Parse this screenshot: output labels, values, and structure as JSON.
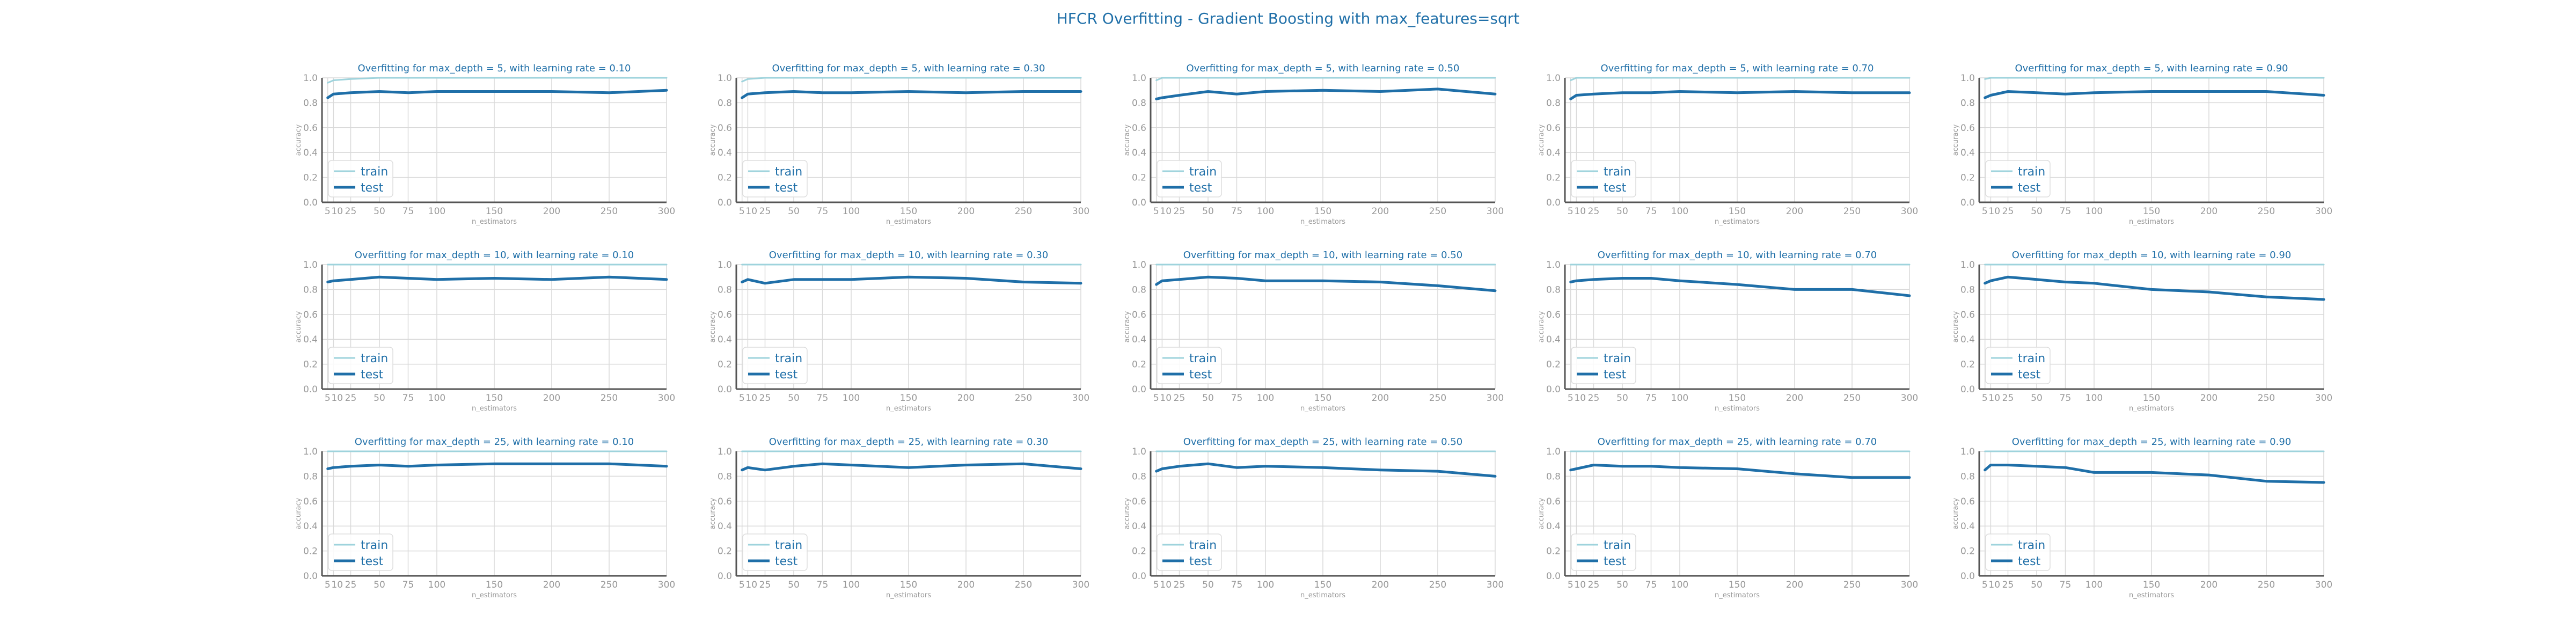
{
  "figure": {
    "title": "HFCR Overfitting - Gradient Boosting with max_features=sqrt",
    "colors": {
      "train": "#9ed3dc",
      "test": "#1f6fa8",
      "grid": "#d9d9d9",
      "text": "#1f6fa8",
      "axis_text": "#999999"
    }
  },
  "chart_data": [
    {
      "type": "line",
      "title": "Overfitting for max_depth = 5, with learning rate = 0.10",
      "xlabel": "n_estimators",
      "ylabel": "accuracy",
      "x": [
        5,
        10,
        25,
        50,
        75,
        100,
        150,
        200,
        250,
        300
      ],
      "xticks": [
        5,
        10,
        25,
        50,
        75,
        100,
        150,
        200,
        250,
        300
      ],
      "xlim": [
        0,
        300
      ],
      "yticks": [
        "0.0",
        "0.2",
        "0.4",
        "0.6",
        "0.8",
        "1.0"
      ],
      "ylim": [
        0,
        1
      ],
      "grid": true,
      "legend": "lower-left",
      "series": [
        {
          "name": "train",
          "values": [
            0.96,
            0.98,
            0.99,
            1.0,
            1.0,
            1.0,
            1.0,
            1.0,
            1.0,
            1.0
          ]
        },
        {
          "name": "test",
          "values": [
            0.84,
            0.87,
            0.88,
            0.89,
            0.88,
            0.89,
            0.89,
            0.89,
            0.88,
            0.9
          ]
        }
      ]
    },
    {
      "type": "line",
      "title": "Overfitting for max_depth = 5, with learning rate = 0.30",
      "xlabel": "n_estimators",
      "ylabel": "accuracy",
      "x": [
        5,
        10,
        25,
        50,
        75,
        100,
        150,
        200,
        250,
        300
      ],
      "xticks": [
        5,
        10,
        25,
        50,
        75,
        100,
        150,
        200,
        250,
        300
      ],
      "xlim": [
        0,
        300
      ],
      "yticks": [
        "0.0",
        "0.2",
        "0.4",
        "0.6",
        "0.8",
        "1.0"
      ],
      "ylim": [
        0,
        1
      ],
      "grid": true,
      "legend": "lower-left",
      "series": [
        {
          "name": "train",
          "values": [
            0.97,
            0.99,
            1.0,
            1.0,
            1.0,
            1.0,
            1.0,
            1.0,
            1.0,
            1.0
          ]
        },
        {
          "name": "test",
          "values": [
            0.84,
            0.87,
            0.88,
            0.89,
            0.88,
            0.88,
            0.89,
            0.88,
            0.89,
            0.89
          ]
        }
      ]
    },
    {
      "type": "line",
      "title": "Overfitting for max_depth = 5, with learning rate = 0.50",
      "xlabel": "n_estimators",
      "ylabel": "accuracy",
      "x": [
        5,
        10,
        25,
        50,
        75,
        100,
        150,
        200,
        250,
        300
      ],
      "xticks": [
        5,
        10,
        25,
        50,
        75,
        100,
        150,
        200,
        250,
        300
      ],
      "xlim": [
        0,
        300
      ],
      "yticks": [
        "0.0",
        "0.2",
        "0.4",
        "0.6",
        "0.8",
        "1.0"
      ],
      "ylim": [
        0,
        1
      ],
      "grid": true,
      "legend": "lower-left",
      "series": [
        {
          "name": "train",
          "values": [
            0.98,
            1.0,
            1.0,
            1.0,
            1.0,
            1.0,
            1.0,
            1.0,
            1.0,
            1.0
          ]
        },
        {
          "name": "test",
          "values": [
            0.83,
            0.84,
            0.86,
            0.89,
            0.87,
            0.89,
            0.9,
            0.89,
            0.91,
            0.87
          ]
        }
      ]
    },
    {
      "type": "line",
      "title": "Overfitting for max_depth = 5, with learning rate = 0.70",
      "xlabel": "n_estimators",
      "ylabel": "accuracy",
      "x": [
        5,
        10,
        25,
        50,
        75,
        100,
        150,
        200,
        250,
        300
      ],
      "xticks": [
        5,
        10,
        25,
        50,
        75,
        100,
        150,
        200,
        250,
        300
      ],
      "xlim": [
        0,
        300
      ],
      "yticks": [
        "0.0",
        "0.2",
        "0.4",
        "0.6",
        "0.8",
        "1.0"
      ],
      "ylim": [
        0,
        1
      ],
      "grid": true,
      "legend": "lower-left",
      "series": [
        {
          "name": "train",
          "values": [
            0.98,
            1.0,
            1.0,
            1.0,
            1.0,
            1.0,
            1.0,
            1.0,
            1.0,
            1.0
          ]
        },
        {
          "name": "test",
          "values": [
            0.83,
            0.86,
            0.87,
            0.88,
            0.88,
            0.89,
            0.88,
            0.89,
            0.88,
            0.88
          ]
        }
      ]
    },
    {
      "type": "line",
      "title": "Overfitting for max_depth = 5, with learning rate = 0.90",
      "xlabel": "n_estimators",
      "ylabel": "accuracy",
      "x": [
        5,
        10,
        25,
        50,
        75,
        100,
        150,
        200,
        250,
        300
      ],
      "xticks": [
        5,
        10,
        25,
        50,
        75,
        100,
        150,
        200,
        250,
        300
      ],
      "xlim": [
        0,
        300
      ],
      "yticks": [
        "0.0",
        "0.2",
        "0.4",
        "0.6",
        "0.8",
        "1.0"
      ],
      "ylim": [
        0,
        1
      ],
      "grid": true,
      "legend": "lower-left",
      "series": [
        {
          "name": "train",
          "values": [
            0.99,
            1.0,
            1.0,
            1.0,
            1.0,
            1.0,
            1.0,
            1.0,
            1.0,
            1.0
          ]
        },
        {
          "name": "test",
          "values": [
            0.84,
            0.86,
            0.89,
            0.88,
            0.87,
            0.88,
            0.89,
            0.89,
            0.89,
            0.86
          ]
        }
      ]
    },
    {
      "type": "line",
      "title": "Overfitting for max_depth = 10, with learning rate = 0.10",
      "xlabel": "n_estimators",
      "ylabel": "accuracy",
      "x": [
        5,
        10,
        25,
        50,
        75,
        100,
        150,
        200,
        250,
        300
      ],
      "xticks": [
        5,
        10,
        25,
        50,
        75,
        100,
        150,
        200,
        250,
        300
      ],
      "xlim": [
        0,
        300
      ],
      "yticks": [
        "0.0",
        "0.2",
        "0.4",
        "0.6",
        "0.8",
        "1.0"
      ],
      "ylim": [
        0,
        1
      ],
      "grid": true,
      "legend": "lower-left",
      "series": [
        {
          "name": "train",
          "values": [
            1.0,
            1.0,
            1.0,
            1.0,
            1.0,
            1.0,
            1.0,
            1.0,
            1.0,
            1.0
          ]
        },
        {
          "name": "test",
          "values": [
            0.86,
            0.87,
            0.88,
            0.9,
            0.89,
            0.88,
            0.89,
            0.88,
            0.9,
            0.88
          ]
        }
      ]
    },
    {
      "type": "line",
      "title": "Overfitting for max_depth = 10, with learning rate = 0.30",
      "xlabel": "n_estimators",
      "ylabel": "accuracy",
      "x": [
        5,
        10,
        25,
        50,
        75,
        100,
        150,
        200,
        250,
        300
      ],
      "xticks": [
        5,
        10,
        25,
        50,
        75,
        100,
        150,
        200,
        250,
        300
      ],
      "xlim": [
        0,
        300
      ],
      "yticks": [
        "0.0",
        "0.2",
        "0.4",
        "0.6",
        "0.8",
        "1.0"
      ],
      "ylim": [
        0,
        1
      ],
      "grid": true,
      "legend": "lower-left",
      "series": [
        {
          "name": "train",
          "values": [
            1.0,
            1.0,
            1.0,
            1.0,
            1.0,
            1.0,
            1.0,
            1.0,
            1.0,
            1.0
          ]
        },
        {
          "name": "test",
          "values": [
            0.86,
            0.88,
            0.85,
            0.88,
            0.88,
            0.88,
            0.9,
            0.89,
            0.86,
            0.85
          ]
        }
      ]
    },
    {
      "type": "line",
      "title": "Overfitting for max_depth = 10, with learning rate = 0.50",
      "xlabel": "n_estimators",
      "ylabel": "accuracy",
      "x": [
        5,
        10,
        25,
        50,
        75,
        100,
        150,
        200,
        250,
        300
      ],
      "xticks": [
        5,
        10,
        25,
        50,
        75,
        100,
        150,
        200,
        250,
        300
      ],
      "xlim": [
        0,
        300
      ],
      "yticks": [
        "0.0",
        "0.2",
        "0.4",
        "0.6",
        "0.8",
        "1.0"
      ],
      "ylim": [
        0,
        1
      ],
      "grid": true,
      "legend": "lower-left",
      "series": [
        {
          "name": "train",
          "values": [
            1.0,
            1.0,
            1.0,
            1.0,
            1.0,
            1.0,
            1.0,
            1.0,
            1.0,
            1.0
          ]
        },
        {
          "name": "test",
          "values": [
            0.84,
            0.87,
            0.88,
            0.9,
            0.89,
            0.87,
            0.87,
            0.86,
            0.83,
            0.79
          ]
        }
      ]
    },
    {
      "type": "line",
      "title": "Overfitting for max_depth = 10, with learning rate = 0.70",
      "xlabel": "n_estimators",
      "ylabel": "accuracy",
      "x": [
        5,
        10,
        25,
        50,
        75,
        100,
        150,
        200,
        250,
        300
      ],
      "xticks": [
        5,
        10,
        25,
        50,
        75,
        100,
        150,
        200,
        250,
        300
      ],
      "xlim": [
        0,
        300
      ],
      "yticks": [
        "0.0",
        "0.2",
        "0.4",
        "0.6",
        "0.8",
        "1.0"
      ],
      "ylim": [
        0,
        1
      ],
      "grid": true,
      "legend": "lower-left",
      "series": [
        {
          "name": "train",
          "values": [
            1.0,
            1.0,
            1.0,
            1.0,
            1.0,
            1.0,
            1.0,
            1.0,
            1.0,
            1.0
          ]
        },
        {
          "name": "test",
          "values": [
            0.86,
            0.87,
            0.88,
            0.89,
            0.89,
            0.87,
            0.84,
            0.8,
            0.8,
            0.75
          ]
        }
      ]
    },
    {
      "type": "line",
      "title": "Overfitting for max_depth = 10, with learning rate = 0.90",
      "xlabel": "n_estimators",
      "ylabel": "accuracy",
      "x": [
        5,
        10,
        25,
        50,
        75,
        100,
        150,
        200,
        250,
        300
      ],
      "xticks": [
        5,
        10,
        25,
        50,
        75,
        100,
        150,
        200,
        250,
        300
      ],
      "xlim": [
        0,
        300
      ],
      "yticks": [
        "0.0",
        "0.2",
        "0.4",
        "0.6",
        "0.8",
        "1.0"
      ],
      "ylim": [
        0,
        1
      ],
      "grid": true,
      "legend": "lower-left",
      "series": [
        {
          "name": "train",
          "values": [
            1.0,
            1.0,
            1.0,
            1.0,
            1.0,
            1.0,
            1.0,
            1.0,
            1.0,
            1.0
          ]
        },
        {
          "name": "test",
          "values": [
            0.85,
            0.87,
            0.9,
            0.88,
            0.86,
            0.85,
            0.8,
            0.78,
            0.74,
            0.72
          ]
        }
      ]
    },
    {
      "type": "line",
      "title": "Overfitting for max_depth = 25, with learning rate = 0.10",
      "xlabel": "n_estimators",
      "ylabel": "accuracy",
      "x": [
        5,
        10,
        25,
        50,
        75,
        100,
        150,
        200,
        250,
        300
      ],
      "xticks": [
        5,
        10,
        25,
        50,
        75,
        100,
        150,
        200,
        250,
        300
      ],
      "xlim": [
        0,
        300
      ],
      "yticks": [
        "0.0",
        "0.2",
        "0.4",
        "0.6",
        "0.8",
        "1.0"
      ],
      "ylim": [
        0,
        1
      ],
      "grid": true,
      "legend": "lower-left",
      "series": [
        {
          "name": "train",
          "values": [
            1.0,
            1.0,
            1.0,
            1.0,
            1.0,
            1.0,
            1.0,
            1.0,
            1.0,
            1.0
          ]
        },
        {
          "name": "test",
          "values": [
            0.86,
            0.87,
            0.88,
            0.89,
            0.88,
            0.89,
            0.9,
            0.9,
            0.9,
            0.88
          ]
        }
      ]
    },
    {
      "type": "line",
      "title": "Overfitting for max_depth = 25, with learning rate = 0.30",
      "xlabel": "n_estimators",
      "ylabel": "accuracy",
      "x": [
        5,
        10,
        25,
        50,
        75,
        100,
        150,
        200,
        250,
        300
      ],
      "xticks": [
        5,
        10,
        25,
        50,
        75,
        100,
        150,
        200,
        250,
        300
      ],
      "xlim": [
        0,
        300
      ],
      "yticks": [
        "0.0",
        "0.2",
        "0.4",
        "0.6",
        "0.8",
        "1.0"
      ],
      "ylim": [
        0,
        1
      ],
      "grid": true,
      "legend": "lower-left",
      "series": [
        {
          "name": "train",
          "values": [
            1.0,
            1.0,
            1.0,
            1.0,
            1.0,
            1.0,
            1.0,
            1.0,
            1.0,
            1.0
          ]
        },
        {
          "name": "test",
          "values": [
            0.85,
            0.87,
            0.85,
            0.88,
            0.9,
            0.89,
            0.87,
            0.89,
            0.9,
            0.86
          ]
        }
      ]
    },
    {
      "type": "line",
      "title": "Overfitting for max_depth = 25, with learning rate = 0.50",
      "xlabel": "n_estimators",
      "ylabel": "accuracy",
      "x": [
        5,
        10,
        25,
        50,
        75,
        100,
        150,
        200,
        250,
        300
      ],
      "xticks": [
        5,
        10,
        25,
        50,
        75,
        100,
        150,
        200,
        250,
        300
      ],
      "xlim": [
        0,
        300
      ],
      "yticks": [
        "0.0",
        "0.2",
        "0.4",
        "0.6",
        "0.8",
        "1.0"
      ],
      "ylim": [
        0,
        1
      ],
      "grid": true,
      "legend": "lower-left",
      "series": [
        {
          "name": "train",
          "values": [
            1.0,
            1.0,
            1.0,
            1.0,
            1.0,
            1.0,
            1.0,
            1.0,
            1.0,
            1.0
          ]
        },
        {
          "name": "test",
          "values": [
            0.84,
            0.86,
            0.88,
            0.9,
            0.87,
            0.88,
            0.87,
            0.85,
            0.84,
            0.8
          ]
        }
      ]
    },
    {
      "type": "line",
      "title": "Overfitting for max_depth = 25, with learning rate = 0.70",
      "xlabel": "n_estimators",
      "ylabel": "accuracy",
      "x": [
        5,
        10,
        25,
        50,
        75,
        100,
        150,
        200,
        250,
        300
      ],
      "xticks": [
        5,
        10,
        25,
        50,
        75,
        100,
        150,
        200,
        250,
        300
      ],
      "xlim": [
        0,
        300
      ],
      "yticks": [
        "0.0",
        "0.2",
        "0.4",
        "0.6",
        "0.8",
        "1.0"
      ],
      "ylim": [
        0,
        1
      ],
      "grid": true,
      "legend": "lower-left",
      "series": [
        {
          "name": "train",
          "values": [
            1.0,
            1.0,
            1.0,
            1.0,
            1.0,
            1.0,
            1.0,
            1.0,
            1.0,
            1.0
          ]
        },
        {
          "name": "test",
          "values": [
            0.85,
            0.86,
            0.89,
            0.88,
            0.88,
            0.87,
            0.86,
            0.82,
            0.79,
            0.79
          ]
        }
      ]
    },
    {
      "type": "line",
      "title": "Overfitting for max_depth = 25, with learning rate = 0.90",
      "xlabel": "n_estimators",
      "ylabel": "accuracy",
      "x": [
        5,
        10,
        25,
        50,
        75,
        100,
        150,
        200,
        250,
        300
      ],
      "xticks": [
        5,
        10,
        25,
        50,
        75,
        100,
        150,
        200,
        250,
        300
      ],
      "xlim": [
        0,
        300
      ],
      "yticks": [
        "0.0",
        "0.2",
        "0.4",
        "0.6",
        "0.8",
        "1.0"
      ],
      "ylim": [
        0,
        1
      ],
      "grid": true,
      "legend": "lower-left",
      "series": [
        {
          "name": "train",
          "values": [
            1.0,
            1.0,
            1.0,
            1.0,
            1.0,
            1.0,
            1.0,
            1.0,
            1.0,
            1.0
          ]
        },
        {
          "name": "test",
          "values": [
            0.85,
            0.89,
            0.89,
            0.88,
            0.87,
            0.83,
            0.83,
            0.81,
            0.76,
            0.75
          ]
        }
      ]
    }
  ]
}
